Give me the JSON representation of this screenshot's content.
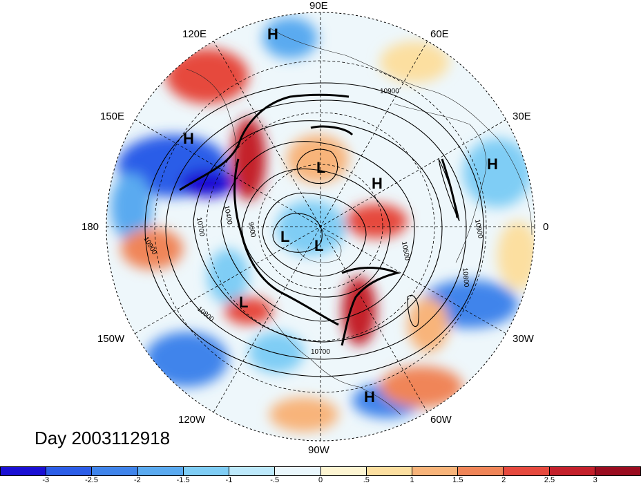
{
  "map": {
    "day_label": "Day 2003112918",
    "longitude_labels": {
      "lon_90e": "90E",
      "lon_60e": "60E",
      "lon_30e": "30E",
      "lon_0": "0",
      "lon_30w": "30W",
      "lon_60w": "60W",
      "lon_90w": "90W",
      "lon_120w": "120W",
      "lon_150w": "150W",
      "lon_180": "180",
      "lon_150e": "150E",
      "lon_120e": "120E"
    },
    "pressure_centers": {
      "h1": "H",
      "h2": "H",
      "h3": "H",
      "h4": "H",
      "h5": "H",
      "l1": "L",
      "l2": "L",
      "l3": "L",
      "l4": "L"
    },
    "contour_labels": {
      "c1": "10900",
      "c2": "10900",
      "c3": "10900",
      "c4": "10700",
      "c5": "10800",
      "c6": "10400",
      "c7": "9600",
      "c8": "10500",
      "c9": "10800",
      "c10": "10700"
    }
  },
  "colorbar": {
    "ticks": [
      "-3",
      "-2.5",
      "-2",
      "-1.5",
      "-1",
      "-.5",
      "0",
      ".5",
      "1",
      "1.5",
      "2",
      "2.5",
      "3"
    ],
    "colors": [
      "#1a0fd4",
      "#2b5de8",
      "#3f84eb",
      "#5aaaf0",
      "#7fcdf5",
      "#bde9fb",
      "#eaf7fc",
      "#fdf5d2",
      "#fcdfa0",
      "#f8b47a",
      "#f08558",
      "#e6493e",
      "#c4202b",
      "#9a0c1f"
    ]
  }
}
